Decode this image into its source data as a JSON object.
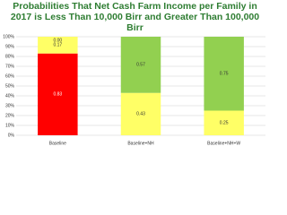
{
  "chart_data": {
    "type": "stacked_bar",
    "title": "Probabilities That Net Cash Farm Income per Family in 2017 is Less Than 10,000 Birr and Greater Than 100,000 Birr",
    "categories": [
      "Baseline",
      "Baseline+NH",
      "Baseline+NH+W"
    ],
    "series": [
      {
        "color": "#ff0000",
        "label_color": "#ffffff",
        "values": [
          0.83,
          null,
          null
        ]
      },
      {
        "color": "#ffff66",
        "label_color": "#333333",
        "values": [
          0.17,
          0.43,
          0.25
        ]
      },
      {
        "color": "#92d050",
        "label_color": "#333333",
        "values": [
          0,
          0.57,
          0.75
        ],
        "value_labels": [
          "0.00",
          "0.57",
          "0.75"
        ]
      }
    ],
    "ylim": [
      0,
      1
    ],
    "yticks": [
      {
        "value": 0,
        "label": "0%"
      },
      {
        "value": 0.1,
        "label": "10%"
      },
      {
        "value": 0.2,
        "label": "20%"
      },
      {
        "value": 0.3,
        "label": "30%"
      },
      {
        "value": 0.4,
        "label": "40%"
      },
      {
        "value": 0.5,
        "label": "50%"
      },
      {
        "value": 0.6,
        "label": "60%"
      },
      {
        "value": 0.7,
        "label": "70%"
      },
      {
        "value": 0.8,
        "label": "80%"
      },
      {
        "value": 0.9,
        "label": "90%"
      },
      {
        "value": 1,
        "label": "100%"
      }
    ],
    "grid": true
  }
}
